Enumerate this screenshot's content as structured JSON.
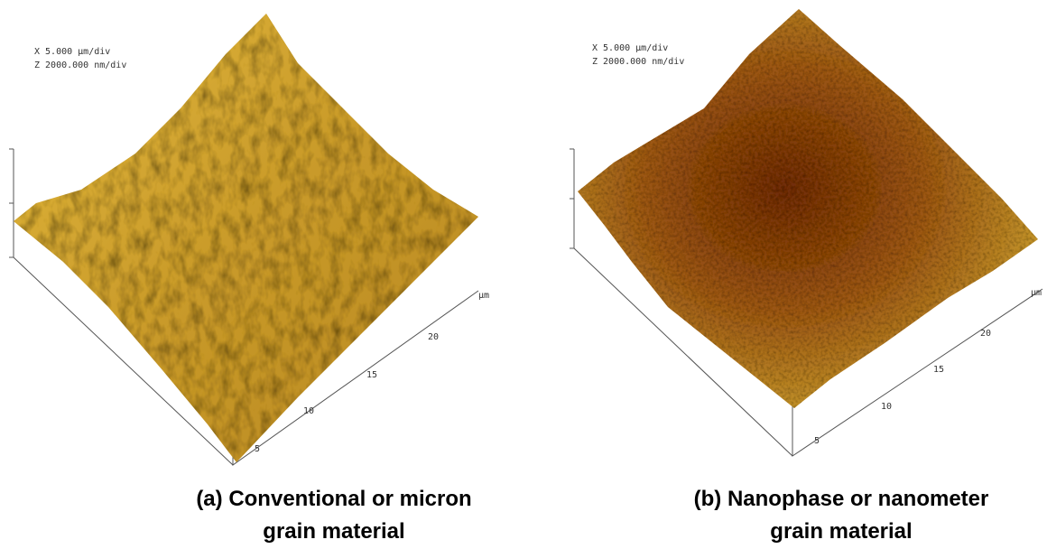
{
  "panels": [
    {
      "scale_x": "X  5.000 µm/div",
      "scale_z": "Z  2000.000 nm/div",
      "axis_unit": "µm",
      "axis_ticks": [
        "5",
        "10",
        "15",
        "20"
      ],
      "caption": [
        "(a) Conventional or micron",
        "grain material"
      ]
    },
    {
      "scale_x": "X  5.000 µm/div",
      "scale_z": "Z  2000.000 nm/div",
      "axis_unit": "µm",
      "axis_ticks": [
        "5",
        "10",
        "15",
        "20"
      ],
      "caption": [
        "(b) Nanophase or nanometer",
        "grain material"
      ]
    }
  ]
}
